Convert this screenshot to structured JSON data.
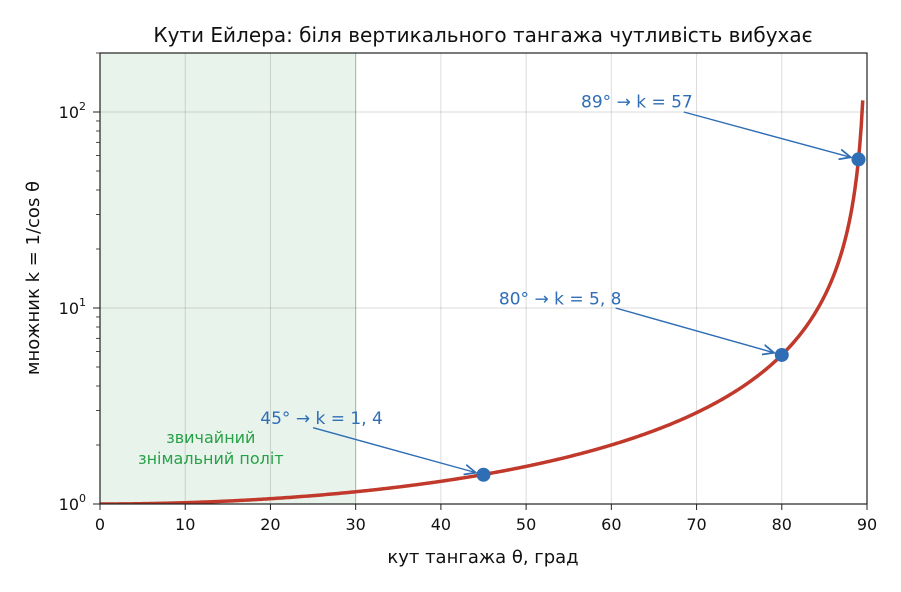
{
  "chart_data": {
    "type": "line",
    "title": "Кути Ейлера: біля вертикального тангажа чутливість вибухає",
    "xlabel": "кут тангажа θ, град",
    "ylabel": "множник k = 1/cos θ",
    "xlim": [
      0,
      90
    ],
    "ylim": [
      1,
      200
    ],
    "yscale": "log",
    "grid": true,
    "x_ticks": [
      "0",
      "10",
      "20",
      "30",
      "40",
      "50",
      "60",
      "70",
      "80",
      "90"
    ],
    "y_ticks": [
      {
        "base": "10",
        "exp": "0"
      },
      {
        "base": "10",
        "exp": "1"
      },
      {
        "base": "10",
        "exp": "2"
      }
    ],
    "series": [
      {
        "function": "1/cos(theta)",
        "x_range": [
          0,
          89.5
        ],
        "color": "#c0392b"
      }
    ],
    "shaded_region": {
      "x": [
        0,
        30
      ],
      "label_lines": [
        "звичайний",
        "знімальний політ"
      ],
      "color": "#e8f3ec",
      "label_color": "#27a147"
    },
    "points": [
      {
        "x": 45,
        "y": 1.41,
        "label": "45° → k = 1, 4"
      },
      {
        "x": 80,
        "y": 5.76,
        "label": "80° → k = 5, 8"
      },
      {
        "x": 89,
        "y": 57.3,
        "label": "89° → k = 57"
      }
    ],
    "point_color": "#2f6db5"
  }
}
